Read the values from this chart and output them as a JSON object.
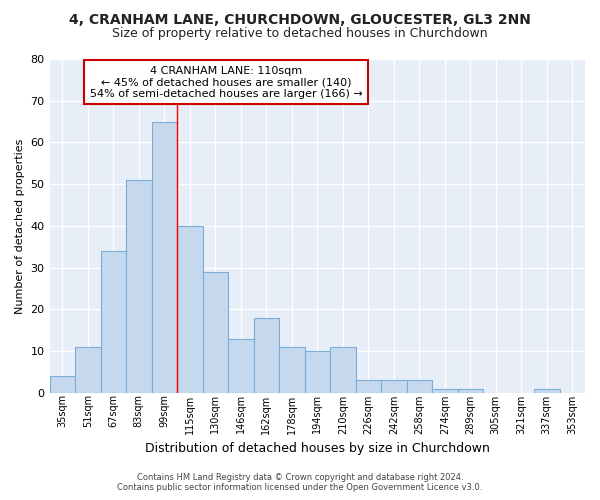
{
  "title1": "4, CRANHAM LANE, CHURCHDOWN, GLOUCESTER, GL3 2NN",
  "title2": "Size of property relative to detached houses in Churchdown",
  "xlabel": "Distribution of detached houses by size in Churchdown",
  "ylabel": "Number of detached properties",
  "categories": [
    "35sqm",
    "51sqm",
    "67sqm",
    "83sqm",
    "99sqm",
    "115sqm",
    "130sqm",
    "146sqm",
    "162sqm",
    "178sqm",
    "194sqm",
    "210sqm",
    "226sqm",
    "242sqm",
    "258sqm",
    "274sqm",
    "289sqm",
    "305sqm",
    "321sqm",
    "337sqm",
    "353sqm"
  ],
  "values": [
    4,
    11,
    34,
    51,
    65,
    40,
    29,
    13,
    18,
    11,
    10,
    11,
    3,
    3,
    3,
    1,
    1,
    0,
    0,
    1,
    0
  ],
  "bar_color": "#c5d8ee",
  "bar_edgecolor": "#7aaed6",
  "background_color": "#e8eef8",
  "grid_color": "#ffffff",
  "fig_background": "#ffffff",
  "ylim": [
    0,
    80
  ],
  "yticks": [
    0,
    10,
    20,
    30,
    40,
    50,
    60,
    70,
    80
  ],
  "redline_x": 4.5,
  "annotation_text": "4 CRANHAM LANE: 110sqm\n← 45% of detached houses are smaller (140)\n54% of semi-detached houses are larger (166) →",
  "annotation_box_color": "#ffffff",
  "annotation_box_edgecolor": "#cc0000",
  "footer1": "Contains HM Land Registry data © Crown copyright and database right 2024.",
  "footer2": "Contains public sector information licensed under the Open Government Licence v3.0."
}
